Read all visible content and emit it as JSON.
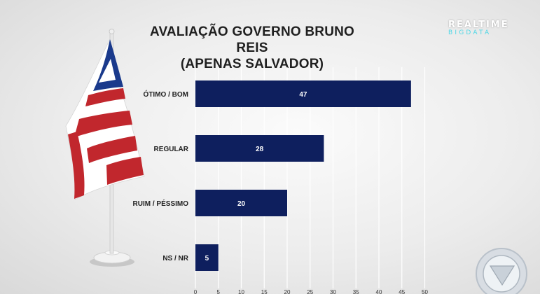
{
  "header": {
    "title_line1": "AVALIAÇÃO GOVERNO BRUNO REIS",
    "title_line2": "(APENAS SALVADOR)"
  },
  "brand": {
    "line1": "REALTIME",
    "line2": "BIGDATA"
  },
  "colors": {
    "bar": "#0e1f5e",
    "grid": "#ffffff",
    "flag_red": "#c1272d",
    "flag_blue": "#1a3a8c",
    "flag_white": "#ffffff"
  },
  "chart_data": {
    "type": "bar",
    "orientation": "horizontal",
    "title": "AVALIAÇÃO GOVERNO BRUNO REIS (APENAS SALVADOR)",
    "categories": [
      "ÓTIMO / BOM",
      "REGULAR",
      "RUIM / PÉSSIMO",
      "NS / NR"
    ],
    "values": [
      47,
      28,
      20,
      5
    ],
    "xlim": [
      0,
      50
    ],
    "xticks": [
      0,
      5,
      10,
      15,
      20,
      25,
      30,
      35,
      40,
      45,
      50
    ],
    "grid": "vertical",
    "data_labels": true
  }
}
